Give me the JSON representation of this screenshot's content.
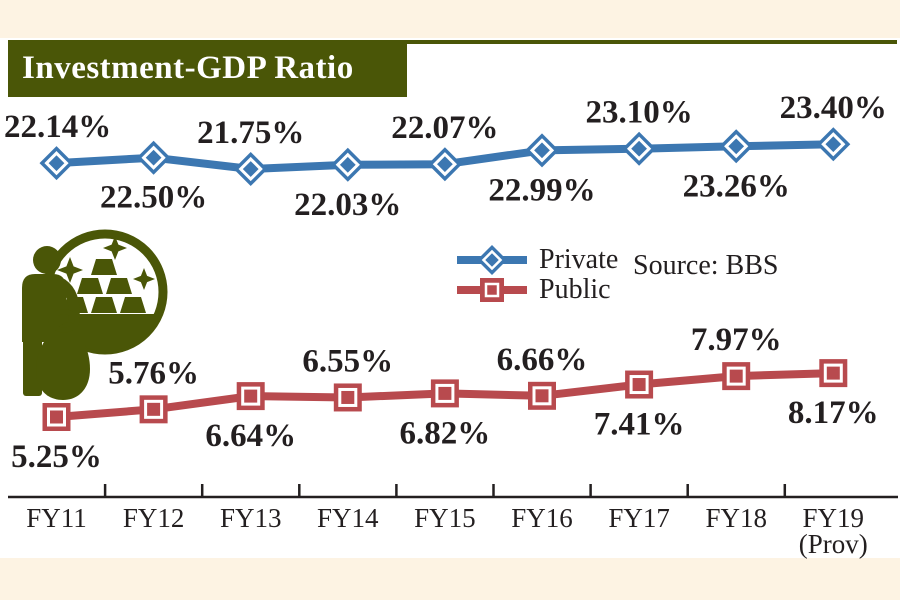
{
  "page": {
    "title": "Investment-GDP Ratio",
    "source_label": "Source: BBS"
  },
  "colors": {
    "olive": "#4a5607",
    "cream": "#fdf3e3",
    "blue": "#3c77b1",
    "red": "#b84a4e",
    "ink": "#231f20"
  },
  "chart_data": {
    "type": "line",
    "title": "Investment-GDP Ratio",
    "unit": "%",
    "categories": [
      "FY11",
      "FY12",
      "FY13",
      "FY14",
      "FY15",
      "FY16",
      "FY17",
      "FY18",
      "FY19"
    ],
    "category_note": {
      "index": 8,
      "text": "(Prov)"
    },
    "series": [
      {
        "name": "Private",
        "color": "blue",
        "marker": "diamond",
        "label_first": "above",
        "values": [
          22.14,
          22.5,
          21.75,
          22.03,
          22.07,
          22.99,
          23.1,
          23.26,
          23.4
        ]
      },
      {
        "name": "Public",
        "color": "red",
        "marker": "square",
        "label_first": "below",
        "values": [
          5.25,
          5.76,
          6.64,
          6.55,
          6.82,
          6.66,
          7.41,
          7.97,
          8.17
        ]
      }
    ],
    "source": "Source: BBS",
    "legend_position": "center-left-of-plot",
    "grid": false,
    "value_label_format": "0.00%",
    "x_axis": {
      "line": true,
      "ticks": "between-categories"
    }
  }
}
